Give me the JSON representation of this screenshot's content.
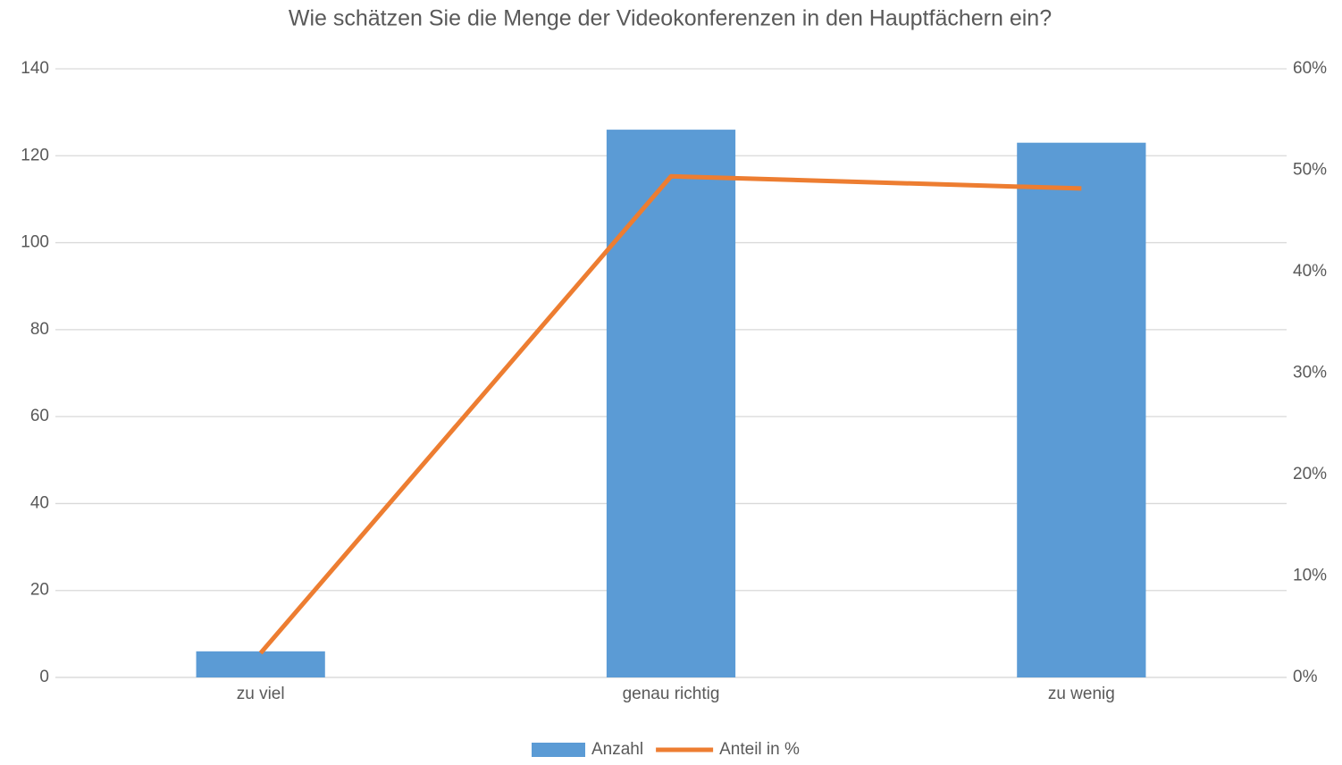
{
  "chart_data": {
    "type": "bar",
    "title": "Wie schätzen Sie die Menge der Videokonferenzen in den Hauptfächern ein?",
    "categories": [
      "zu viel",
      "genau richtig",
      "zu wenig"
    ],
    "series": [
      {
        "name": "Anzahl",
        "type": "bar",
        "color": "#5b9bd5",
        "values": [
          6,
          126,
          123
        ]
      },
      {
        "name": "Anteil in %",
        "type": "line",
        "axis": "y2",
        "color": "#ed7d31",
        "values": [
          2.4,
          49.4,
          48.2
        ]
      }
    ],
    "ylim": [
      0,
      140
    ],
    "yticks": [
      0,
      20,
      40,
      60,
      80,
      100,
      120,
      140
    ],
    "y2lim": [
      0,
      60
    ],
    "y2ticks": [
      {
        "value": 0,
        "label": "0%"
      },
      {
        "value": 10,
        "label": "10%"
      },
      {
        "value": 20,
        "label": "20%"
      },
      {
        "value": 30,
        "label": "30%"
      },
      {
        "value": 40,
        "label": "40%"
      },
      {
        "value": 50,
        "label": "50%"
      },
      {
        "value": 60,
        "label": "60%"
      }
    ],
    "grid": true,
    "legend": "bottom"
  }
}
